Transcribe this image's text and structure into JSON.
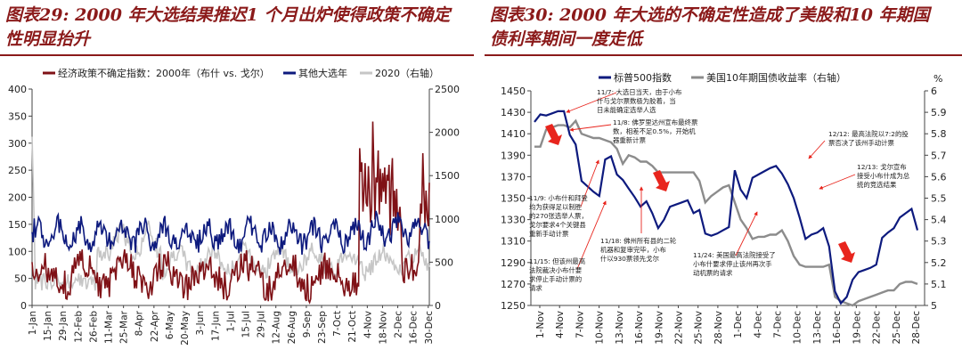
{
  "chart_data": [
    {
      "type": "line",
      "title_line1": "图表29: 2000 年大选结果推迟1 个月出炉使得政策不确定",
      "title_line2": "性明显抬升",
      "legend": {
        "items": [
          {
            "name": "经济政策不确定指数：2000年（布什 vs. 戈尔）",
            "color": "#7f1116"
          },
          {
            "name": "其他大选年",
            "color": "#0d1a7e"
          },
          {
            "name": "2020（右轴）",
            "color": "#c6c6c6"
          }
        ]
      },
      "ylim_left": [
        0,
        400
      ],
      "yticks_left": [
        "0",
        "50",
        "100",
        "150",
        "200",
        "250",
        "300",
        "350",
        "400"
      ],
      "ylim_right": [
        0,
        2500
      ],
      "yticks_right": [
        "0",
        "500",
        "1000",
        "1500",
        "2000",
        "2500"
      ],
      "x_ticks": [
        "1-Jan",
        "15-Jan",
        "29-Jan",
        "12-Feb",
        "26-Feb",
        "11-Mar",
        "25-Mar",
        "8-Apr",
        "22-Apr",
        "6-May",
        "20-May",
        "3-Jun",
        "17-Jun",
        "1-Jul",
        "15-Jul",
        "29-Jul",
        "12-Aug",
        "26-Aug",
        "9-Sep",
        "23-Sep",
        "7-Oct",
        "21-Oct",
        "4-Nov",
        "18-Nov",
        "2-Dec",
        "16-Dec",
        "30-Dec"
      ],
      "colors": {
        "s2000": "#7f1116",
        "other": "#0d1a7e",
        "s2020": "#c6c6c6"
      }
    },
    {
      "type": "line",
      "title_line1": "图表30: 2000 年大选的不确定性造成了美股和10 年期国",
      "title_line2": "债利率期间一度走低",
      "legend": {
        "items": [
          {
            "name": "标普500指数",
            "color": "#0d1a7e"
          },
          {
            "name": "美国10年期国债收益率（右轴）",
            "color": "#8c8c8c"
          }
        ]
      },
      "right_unit": "%",
      "ylim_left": [
        1250,
        1450
      ],
      "yticks_left": [
        "1250",
        "1270",
        "1290",
        "1310",
        "1330",
        "1350",
        "1370",
        "1390",
        "1410",
        "1430",
        "1450"
      ],
      "ylim_right": [
        5.0,
        6.0
      ],
      "yticks_right": [
        "5",
        "5.1",
        "5.2",
        "5.3",
        "5.4",
        "5.5",
        "5.6",
        "5.7",
        "5.8",
        "5.9",
        "6"
      ],
      "x_ticks": [
        "1-Nov",
        "4-Nov",
        "7-Nov",
        "10-Nov",
        "13-Nov",
        "16-Nov",
        "19-Nov",
        "22-Nov",
        "25-Nov",
        "28-Nov",
        "1-Dec",
        "4-Dec",
        "7-Dec",
        "10-Dec",
        "13-Dec",
        "16-Dec",
        "19-Dec",
        "22-Dec",
        "25-Dec",
        "28-Dec"
      ],
      "series": [
        {
          "name": "标普500指数",
          "values": [
            1421,
            1428,
            1427,
            1429,
            1431,
            1431,
            1409,
            1400,
            1366,
            1361,
            1356,
            1352,
            1386,
            1389,
            1372,
            1367,
            1359,
            1351,
            1342,
            1347,
            1336,
            1322,
            1330,
            1342,
            1344,
            1346,
            1348,
            1336,
            1339,
            1317,
            1315,
            1317,
            1320,
            1323,
            1376,
            1358,
            1350,
            1369,
            1372,
            1375,
            1378,
            1380,
            1373,
            1363,
            1350,
            1332,
            1312,
            1316,
            1318,
            1322,
            1305,
            1263,
            1252,
            1258,
            1274,
            1281,
            1283,
            1285,
            1288,
            1313,
            1318,
            1322,
            1332,
            1336,
            1340,
            1320
          ]
        },
        {
          "name": "美国10年期国债收益率（右轴）",
          "values": [
            5.74,
            5.74,
            5.82,
            5.83,
            5.84,
            5.84,
            5.83,
            5.86,
            5.8,
            5.79,
            5.78,
            5.78,
            5.77,
            5.76,
            5.73,
            5.66,
            5.7,
            5.69,
            5.67,
            5.67,
            5.65,
            5.62,
            5.62,
            5.62,
            5.62,
            5.62,
            5.62,
            5.62,
            5.58,
            5.48,
            5.51,
            5.53,
            5.55,
            5.56,
            5.48,
            5.4,
            5.36,
            5.31,
            5.32,
            5.32,
            5.33,
            5.33,
            5.35,
            5.3,
            5.23,
            5.19,
            5.18,
            5.18,
            5.18,
            5.18,
            5.19,
            5.04,
            5.02,
            5.01,
            5.0,
            5.02,
            5.03,
            5.04,
            5.05,
            5.06,
            5.07,
            5.07,
            5.1,
            5.11,
            5.11,
            5.1
          ]
        }
      ],
      "annotations": [
        {
          "id": "a117",
          "lines": [
            "11/7: 大选日当天，由于小布",
            "什与戈尔票数极为胶着，当",
            "日未能确定选举人选"
          ]
        },
        {
          "id": "a118",
          "lines": [
            "11/8: 佛罗里达州宣布最终票",
            "数，相差不足0.5%，开始机",
            "器重新计票"
          ]
        },
        {
          "id": "a119",
          "lines": [
            "11/9: 小布什和拜登",
            "均为获得足以制胜",
            "的270张选举人票，",
            "戈尔要求4个关键县",
            "重新手动计票"
          ]
        },
        {
          "id": "a1118",
          "lines": [
            "11/18: 佛州所有县的二轮",
            "机器和复审完毕，小布",
            "什以930票领先戈尔"
          ]
        },
        {
          "id": "a1115",
          "lines": [
            "11/15: 但该州最高",
            "法院裁决小布什要",
            "求停止手动计票的",
            "请求"
          ]
        },
        {
          "id": "a1124",
          "lines": [
            "11/24: 美国最高法院接受了",
            "小布什要求停止该州再次手",
            "动机票的请求"
          ]
        },
        {
          "id": "a1212",
          "lines": [
            "12/12: 最高法院以7:2的投",
            "票否决了该州手动计票"
          ]
        },
        {
          "id": "a1213",
          "lines": [
            "12/13: 戈尔宣布",
            "接受小布什成为总",
            "统的竞选结果"
          ]
        }
      ],
      "colors": {
        "sp500": "#0d1a7e",
        "yield": "#8c8c8c",
        "arrow": "#e8251d"
      }
    }
  ]
}
